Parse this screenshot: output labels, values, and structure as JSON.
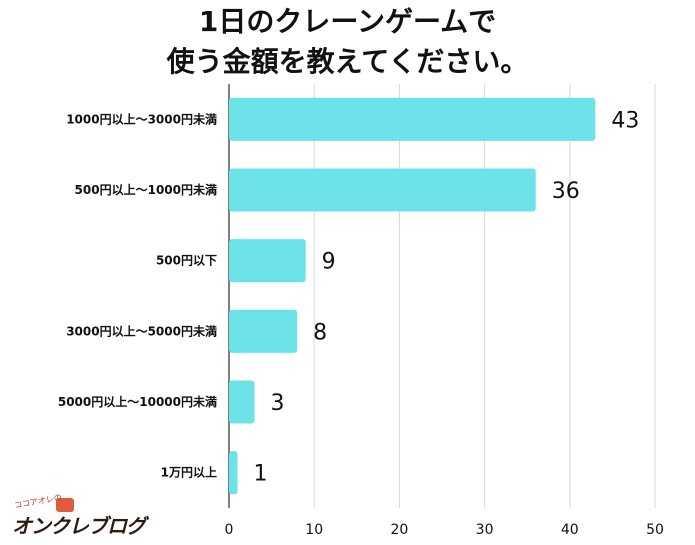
{
  "title_lines": [
    "1日のクレーンゲームで",
    "使う金額を教えてください。"
  ],
  "logo": {
    "small_text": "ココアオレの",
    "main_text": "オンクレブログ"
  },
  "colors": {
    "bar": "#6ce3e8",
    "grid": "#d9d9d9",
    "axis": "#555555",
    "text": "#111111"
  },
  "chart_data": {
    "type": "bar",
    "orientation": "horizontal",
    "categories": [
      "1000円以上～3000円未満",
      "500円以上～1000円未満",
      "500円以下",
      "3000円以上～5000円未満",
      "5000円以上～10000円未満",
      "1万円以上"
    ],
    "values": [
      43,
      36,
      9,
      8,
      3,
      1
    ],
    "xlim": [
      0,
      50
    ],
    "xticks": [
      0,
      10,
      20,
      30,
      40,
      50
    ],
    "grid": true,
    "data_labels": true
  }
}
